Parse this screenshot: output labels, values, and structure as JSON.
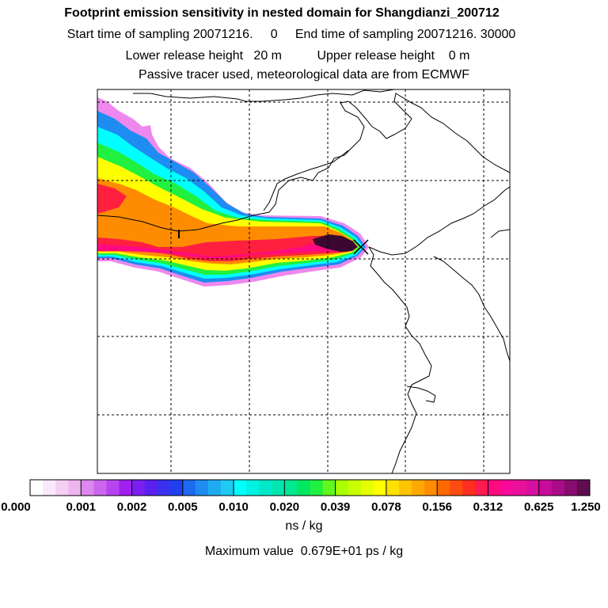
{
  "header": {
    "title": "Footprint emission sensitivity in nested domain for Shangdianzi_200712",
    "sampling_line": "Start time of sampling 20071216.     0     End time of sampling 20071216. 30000",
    "release_line": "Lower release height   20 m          Upper release height    0 m",
    "tracer_line": "Passive tracer used, meteorological data are from ECMWF"
  },
  "colorbar": {
    "tick_labels": [
      "0.000",
      "0.001",
      "0.002",
      "0.005",
      "0.010",
      "0.020",
      "0.039",
      "0.078",
      "0.156",
      "0.312",
      "0.625",
      "1.250"
    ],
    "colors": [
      "#ffffff",
      "#fbe8fb",
      "#f5d0f5",
      "#eeb6ee",
      "#dd88ee",
      "#cc66ee",
      "#b844f0",
      "#a020f0",
      "#7a1ff0",
      "#5a20f0",
      "#3a30f0",
      "#2040f0",
      "#1e6af0",
      "#1e8cf0",
      "#1eacf0",
      "#1ecaf0",
      "#00ffff",
      "#00f2e0",
      "#00e8c8",
      "#00e6b0",
      "#00e890",
      "#00e860",
      "#20f040",
      "#60f820",
      "#a8ff00",
      "#c8ff00",
      "#e6ff00",
      "#ffff00",
      "#ffe000",
      "#ffc400",
      "#ffa800",
      "#ff8c00",
      "#ff6a00",
      "#ff4c10",
      "#ff2e20",
      "#ff1a50",
      "#ff0a80",
      "#f80a9a",
      "#e8129a",
      "#d80ea0",
      "#c80c9a",
      "#a80c88",
      "#880c70",
      "#600c50"
    ],
    "units": "ns / kg",
    "max_value": "Maximum value  0.679E+01 ps / kg"
  },
  "map": {
    "receptor_marker": "cross",
    "plume_colors": {
      "edge": "#ee88ee",
      "blue": "#1e8cf0",
      "cyan": "#00ffff",
      "green": "#20f040",
      "yellow": "#ffff00",
      "orange": "#ff8c00",
      "red": "#ff2040",
      "magenta": "#ff0a80",
      "dark": "#3a0830"
    }
  }
}
